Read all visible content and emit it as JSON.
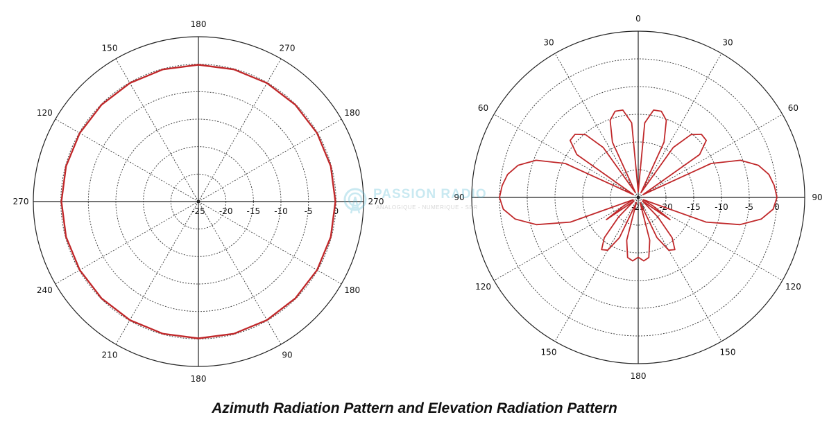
{
  "caption": "Azimuth Radiation Pattern and Elevation Radiation Pattern",
  "watermark": {
    "title": "PASSION RADIO",
    "subtitle": "ANALOGIQUE - NUMERIQUE - SDR"
  },
  "colors": {
    "trace": "#c0282a",
    "axis": "#222222",
    "grid": "#444444",
    "text": "#111111"
  },
  "chart_data": [
    {
      "type": "polar",
      "title": "",
      "rlim": [
        -25,
        5
      ],
      "radial_tick_labels": [
        "-25",
        "-20",
        "-15",
        "-10",
        "-5",
        "0"
      ],
      "radial_ticks": [
        -25,
        -20,
        -15,
        -10,
        -5,
        0
      ],
      "grid_rings_db": [
        -20,
        -15,
        -10,
        -5,
        0
      ],
      "spoke_step_deg": 30,
      "angle_labels": [
        {
          "angle": 0,
          "text": "270"
        },
        {
          "angle": 30,
          "text": "180"
        },
        {
          "angle": 60,
          "text": "270"
        },
        {
          "angle": 90,
          "text": "180"
        },
        {
          "angle": 120,
          "text": "150"
        },
        {
          "angle": 150,
          "text": "120"
        },
        {
          "angle": 180,
          "text": "270"
        },
        {
          "angle": 210,
          "text": "240"
        },
        {
          "angle": 240,
          "text": "210"
        },
        {
          "angle": 270,
          "text": "180"
        },
        {
          "angle": 300,
          "text": "90"
        },
        {
          "angle": 330,
          "text": "180"
        }
      ],
      "series": [
        {
          "angle_deg": [
            0,
            15,
            30,
            45,
            60,
            75,
            90,
            105,
            120,
            135,
            150,
            165,
            180,
            195,
            210,
            225,
            240,
            255,
            270,
            285,
            300,
            315,
            330,
            345
          ],
          "gain_db": [
            -0.1,
            -0.1,
            -0.1,
            -0.1,
            -0.1,
            -0.1,
            -0.1,
            -0.1,
            -0.1,
            -0.1,
            -0.1,
            -0.1,
            -0.1,
            -0.1,
            -0.1,
            -0.1,
            -0.1,
            -0.1,
            -0.1,
            -0.1,
            -0.1,
            -0.1,
            -0.1,
            -0.1
          ]
        }
      ]
    },
    {
      "type": "polar",
      "title": "",
      "rlim": [
        -25,
        5
      ],
      "radial_tick_labels": [
        "-25",
        "-20",
        "-15",
        "-10",
        "-5",
        "0"
      ],
      "radial_ticks": [
        -25,
        -20,
        -15,
        -10,
        -5,
        0
      ],
      "grid_rings_db": [
        -20,
        -15,
        -10,
        -5,
        0
      ],
      "spoke_step_deg": 30,
      "angle_labels": [
        {
          "angle": 0,
          "text": "90"
        },
        {
          "angle": 30,
          "text": "60"
        },
        {
          "angle": 60,
          "text": "30"
        },
        {
          "angle": 90,
          "text": "0"
        },
        {
          "angle": 120,
          "text": "30"
        },
        {
          "angle": 150,
          "text": "60"
        },
        {
          "angle": 180,
          "text": "90"
        },
        {
          "angle": 210,
          "text": "120"
        },
        {
          "angle": 240,
          "text": "150"
        },
        {
          "angle": 270,
          "text": "180"
        },
        {
          "angle": 300,
          "text": "150"
        },
        {
          "angle": 330,
          "text": "120"
        }
      ],
      "series": [
        {
          "angle_deg": [
            0,
            5,
            10,
            15,
            20,
            25,
            30,
            35,
            40,
            45,
            50,
            55,
            60,
            65,
            70,
            75,
            80,
            85,
            90,
            95,
            100,
            105,
            110,
            115,
            120,
            125,
            130,
            135,
            140,
            145,
            150,
            155,
            160,
            165,
            170,
            175,
            180,
            185,
            190,
            195,
            200,
            205,
            210,
            215,
            220,
            225,
            230,
            235,
            240,
            245,
            250,
            255,
            260,
            265,
            270,
            275,
            280,
            285,
            290,
            295,
            300,
            305,
            310,
            315,
            320,
            325,
            330,
            335,
            340,
            345,
            350,
            355
          ],
          "gain_db": [
            0.0,
            -0.4,
            -1.1,
            -2.6,
            -5.4,
            -10.5,
            -24.0,
            -11.5,
            -9.0,
            -8.9,
            -10.2,
            -14.0,
            -24.0,
            -14.0,
            -10.2,
            -8.9,
            -9.0,
            -11.5,
            -24.0,
            -11.5,
            -9.0,
            -8.9,
            -10.2,
            -14.0,
            -24.0,
            -14.0,
            -10.2,
            -8.9,
            -9.0,
            -11.5,
            -24.0,
            -10.5,
            -5.4,
            -2.6,
            -1.1,
            -0.4,
            0.0,
            -0.6,
            -2.5,
            -6.0,
            -12.0,
            -24.0,
            -22.0,
            -18.0,
            -24.0,
            -20.0,
            -15.5,
            -13.5,
            -14.0,
            -17.0,
            -24.0,
            -17.0,
            -14.0,
            -13.5,
            -14.2,
            -13.5,
            -14.0,
            -17.0,
            -24.0,
            -17.0,
            -14.0,
            -13.5,
            -15.5,
            -20.0,
            -24.0,
            -18.0,
            -22.0,
            -24.0,
            -12.0,
            -6.0,
            -2.5,
            -0.6
          ]
        }
      ]
    }
  ]
}
